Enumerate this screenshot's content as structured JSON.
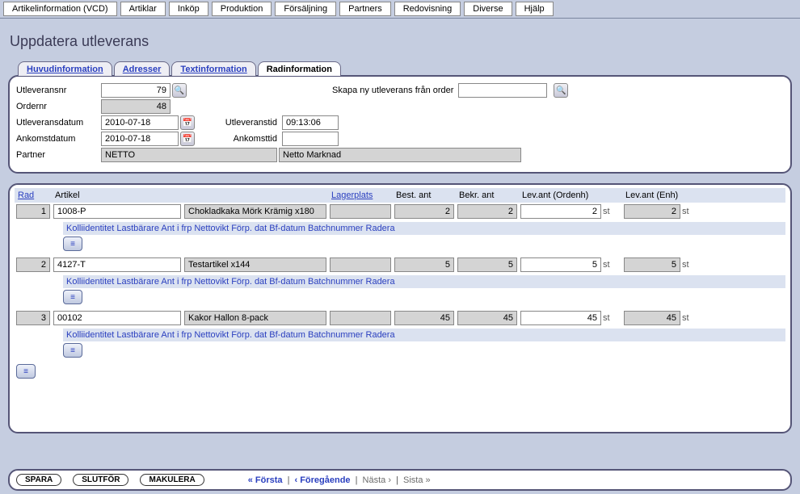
{
  "menu": [
    "Artikelinformation (VCD)",
    "Artiklar",
    "Inköp",
    "Produktion",
    "Försäljning",
    "Partners",
    "Redovisning",
    "Diverse",
    "Hjälp"
  ],
  "page_title": "Uppdatera utleverans",
  "tabs": {
    "items": [
      "Huvudinformation",
      "Adresser",
      "Textinformation",
      "Radinformation"
    ],
    "active_index": 3
  },
  "form": {
    "utleveransnr_label": "Utleveransnr",
    "utleveransnr": "79",
    "ordernr_label": "Ordernr",
    "ordernr": "48",
    "utleveransdatum_label": "Utleveransdatum",
    "utleveransdatum": "2010-07-18",
    "utleveranstid_label": "Utleveranstid",
    "utleveranstid": "09:13:06",
    "ankomstdatum_label": "Ankomstdatum",
    "ankomstdatum": "2010-07-18",
    "ankomsttid_label": "Ankomsttid",
    "ankomsttid": "",
    "partner_label": "Partner",
    "partner_code": "NETTO",
    "partner_name": "Netto Marknad",
    "skapa_label": "Skapa ny utleverans från order",
    "skapa_value": ""
  },
  "grid": {
    "headers": {
      "rad": "Rad",
      "artikel": "Artikel",
      "blank": "",
      "lagerplats": "Lagerplats",
      "best_ant": "Best. ant",
      "bekr_ant": "Bekr. ant",
      "lev_ordenh": "Lev.ant (Ordenh)",
      "lev_enh": "Lev.ant (Enh)"
    },
    "sub_header": "Kolliidentitet Lastbärare Ant i frp Nettovikt Förp. dat Bf-datum Batchnummer Radera",
    "rows": [
      {
        "rad": "1",
        "artikel": "1008-P",
        "artikelnamn": "Chokladkaka Mörk Krämig x180",
        "lagerplats": "",
        "best": "2",
        "bekr": "2",
        "lev_ord": "2",
        "unit_ord": "st",
        "lev_enh": "2",
        "unit_enh": "st"
      },
      {
        "rad": "2",
        "artikel": "4127-T",
        "artikelnamn": "Testartikel x144",
        "lagerplats": "",
        "best": "5",
        "bekr": "5",
        "lev_ord": "5",
        "unit_ord": "st",
        "lev_enh": "5",
        "unit_enh": "st"
      },
      {
        "rad": "3",
        "artikel": "00102",
        "artikelnamn": "Kakor Hallon 8-pack",
        "lagerplats": "",
        "best": "45",
        "bekr": "45",
        "lev_ord": "45",
        "unit_ord": "st",
        "lev_enh": "45",
        "unit_enh": "st"
      }
    ]
  },
  "footer": {
    "spara": "SPARA",
    "slutfor": "SLUTFÖR",
    "makulera": "MAKULERA",
    "first": "« Första",
    "prev": "‹ Föregående",
    "next": "Nästa ›",
    "last": "Sista »"
  },
  "icons": {
    "search": "🔍",
    "calendar": "📅",
    "detail": "≡"
  }
}
